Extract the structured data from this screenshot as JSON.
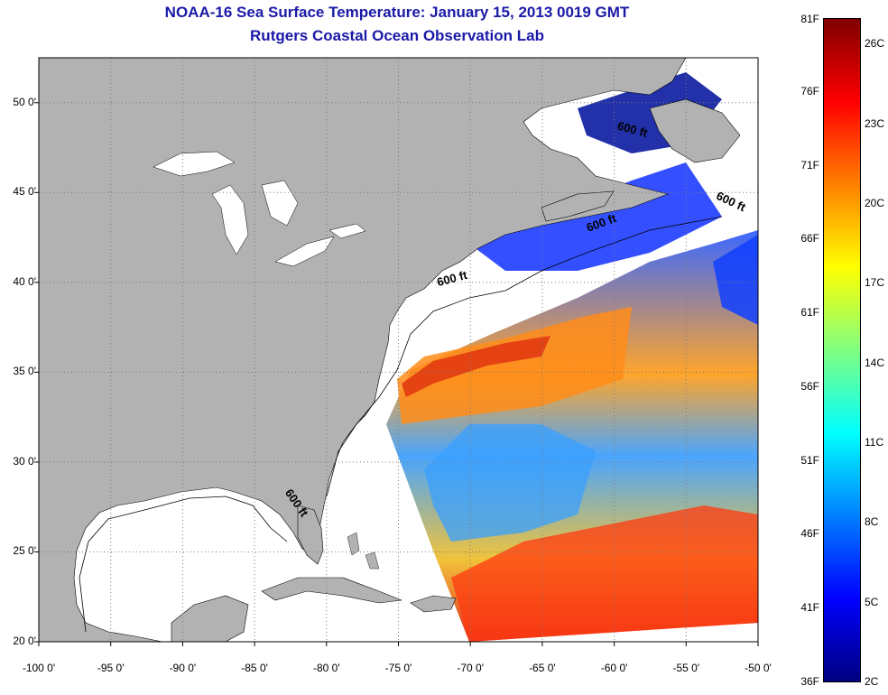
{
  "title": "NOAA-16 Sea Surface Temperature:  January 15, 2013 0019 GMT",
  "subtitle": "Rutgers Coastal Ocean Observation Lab",
  "map": {
    "lon_range": [
      -100,
      -50
    ],
    "lat_range": [
      20,
      52.5
    ],
    "x_ticks": [
      "-100 0'",
      "-95 0'",
      "-90 0'",
      "-85 0'",
      "-80 0'",
      "-75 0'",
      "-70 0'",
      "-65 0'",
      "-60 0'",
      "-55 0'",
      "-50 0'"
    ],
    "y_ticks": [
      "50 0'",
      "45 0'",
      "40 0'",
      "35 0'",
      "30 0'",
      "25 0'",
      "20 0'"
    ],
    "contour_labels": [
      {
        "text": "600 ft",
        "lon": -58.8,
        "lat": 48.3
      },
      {
        "text": "600 ft",
        "lon": -52.0,
        "lat": 44.3
      },
      {
        "text": "600 ft",
        "lon": -60.8,
        "lat": 43.1
      },
      {
        "text": "600 ft",
        "lon": -71.2,
        "lat": 40.0
      },
      {
        "text": "600 ft",
        "lon": -82.3,
        "lat": 27.6
      }
    ],
    "colors": {
      "land": "#b2b2b2",
      "no_data": "#ffffff",
      "grid": "#7a7a7a"
    }
  },
  "colorbar": {
    "range_f": [
      36,
      81
    ],
    "range_c": [
      2,
      27
    ],
    "f_labels": [
      "81F",
      "76F",
      "71F",
      "66F",
      "61F",
      "56F",
      "51F",
      "46F",
      "41F",
      "36F"
    ],
    "c_labels": [
      "26C",
      "23C",
      "20C",
      "17C",
      "14C",
      "11C",
      "8C",
      "5C",
      "2C"
    ],
    "colormap": "jet"
  }
}
